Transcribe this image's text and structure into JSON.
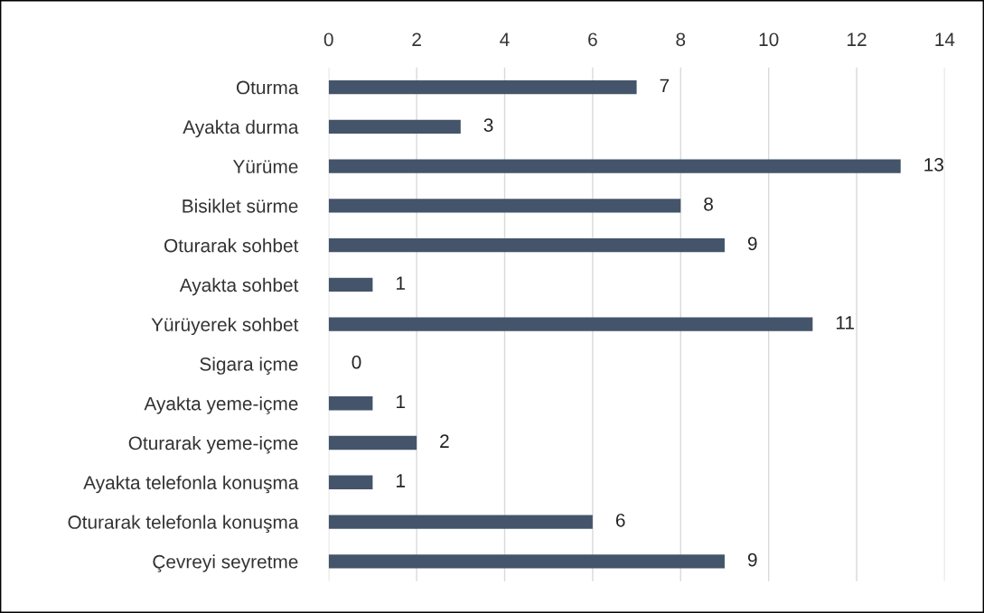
{
  "chart_data": {
    "type": "bar",
    "orientation": "horizontal",
    "categories": [
      "Oturma",
      "Ayakta durma",
      "Yürüme",
      "Bisiklet sürme",
      "Oturarak sohbet",
      "Ayakta sohbet",
      "Yürüyerek sohbet",
      "Sigara içme",
      "Ayakta yeme-içme",
      "Oturarak yeme-içme",
      "Ayakta telefonla konuşma",
      "Oturarak telefonla konuşma",
      "Çevreyi seyretme"
    ],
    "values": [
      7,
      3,
      13,
      8,
      9,
      1,
      11,
      0,
      1,
      2,
      1,
      6,
      9
    ],
    "color": "#44546a",
    "xlim": [
      0,
      14
    ],
    "xticks": [
      0,
      2,
      4,
      6,
      8,
      10,
      12,
      14
    ],
    "grid": "x",
    "data_labels": true,
    "legend": false
  }
}
